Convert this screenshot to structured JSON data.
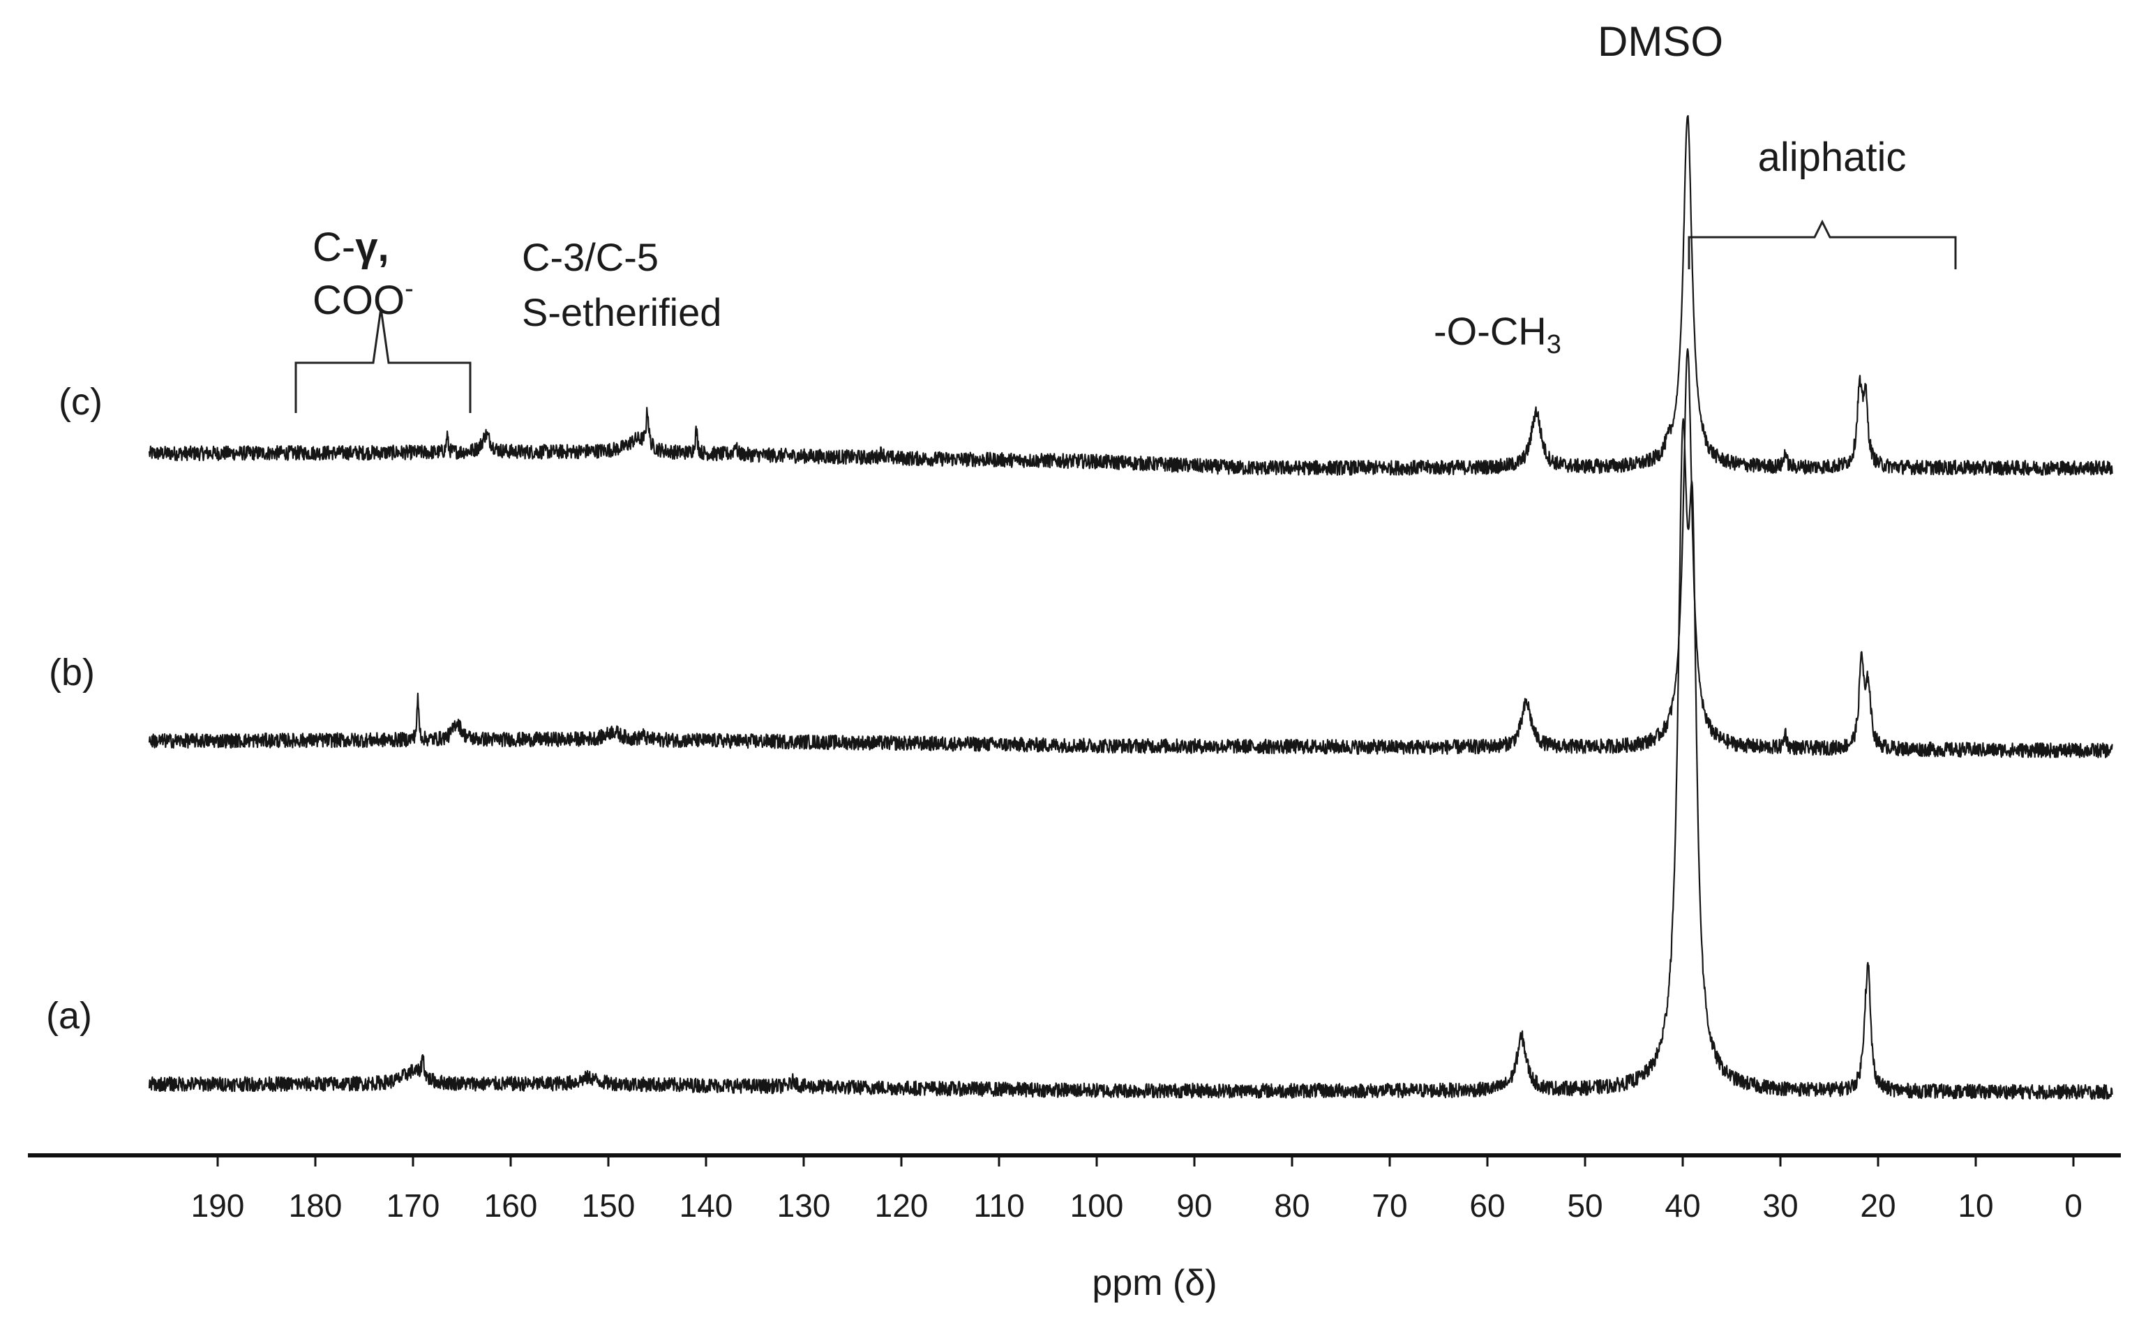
{
  "chart_data": {
    "type": "line",
    "title": "",
    "xlabel": "ppm (δ)",
    "ylabel": "",
    "x_reversed": true,
    "xlim": [
      197,
      -4
    ],
    "x_ticks": [
      190,
      180,
      170,
      160,
      150,
      140,
      130,
      120,
      110,
      100,
      90,
      80,
      70,
      60,
      50,
      40,
      30,
      20,
      10,
      0
    ],
    "x_tick_labels": [
      "190",
      "180",
      "170",
      "160",
      "150",
      "140",
      "130",
      "120",
      "110",
      "100",
      "90",
      "80",
      "70",
      "60",
      "50",
      "40",
      "30",
      "20",
      "10",
      "0"
    ],
    "grid": false,
    "legend": "none",
    "series": [
      {
        "label": "(c)",
        "baseline": [
          [
            197,
            0
          ],
          [
            150,
            0.01
          ],
          [
            120,
            -0.03
          ],
          [
            100,
            -0.05
          ],
          [
            85,
            -0.09
          ],
          [
            0,
            -0.09
          ]
        ],
        "peaks": [
          [
            166.5,
            0.11,
            0.1
          ],
          [
            162.5,
            0.11,
            0.5
          ],
          [
            147,
            0.08,
            1.2
          ],
          [
            146,
            0.22,
            0.15
          ],
          [
            141,
            0.14,
            0.15
          ],
          [
            137,
            0.07,
            0.15
          ],
          [
            122,
            0.04,
            0.2
          ],
          [
            55,
            0.35,
            0.6
          ],
          [
            41.5,
            0.05,
            0.5
          ],
          [
            39.5,
            2.2,
            0.55
          ],
          [
            29.5,
            0.1,
            0.15
          ],
          [
            21.9,
            0.45,
            0.3
          ],
          [
            21.3,
            0.42,
            0.3
          ]
        ]
      },
      {
        "label": "(b)",
        "baseline": [
          [
            197,
            0
          ],
          [
            150,
            0.01
          ],
          [
            100,
            -0.03
          ],
          [
            0,
            -0.06
          ]
        ],
        "peaks": [
          [
            169.5,
            0.25,
            0.12
          ],
          [
            165.5,
            0.11,
            0.5
          ],
          [
            149.5,
            0.05,
            0.8
          ],
          [
            146.5,
            0.03,
            0.2
          ],
          [
            56,
            0.28,
            0.6
          ],
          [
            39.5,
            2.5,
            0.55
          ],
          [
            29.5,
            0.1,
            0.15
          ],
          [
            21.7,
            0.55,
            0.28
          ],
          [
            21,
            0.38,
            0.3
          ]
        ]
      },
      {
        "label": "(a)",
        "baseline": [
          [
            197,
            0
          ],
          [
            150,
            0
          ],
          [
            100,
            -0.04
          ],
          [
            0,
            -0.05
          ]
        ],
        "peaks": [
          [
            170,
            0.08,
            1.2
          ],
          [
            169,
            0.13,
            0.15
          ],
          [
            152,
            0.04,
            1.0
          ],
          [
            131,
            0.04,
            0.3
          ],
          [
            56.5,
            0.33,
            0.6
          ],
          [
            40,
            3.6,
            0.6
          ],
          [
            39,
            2.8,
            0.5
          ],
          [
            21.3,
            0.25,
            0.3
          ],
          [
            21,
            0.65,
            0.3
          ]
        ]
      }
    ],
    "annotations": [
      {
        "text": "DMSO"
      },
      {
        "text": "aliphatic"
      },
      {
        "text": "C-3/C-5"
      },
      {
        "text": "S-etherified"
      },
      {
        "text": "C-"
      },
      {
        "text": "γ,"
      },
      {
        "text": "COO"
      },
      {
        "text": "-"
      },
      {
        "text": "-O-CH"
      },
      {
        "text": "3"
      }
    ]
  }
}
